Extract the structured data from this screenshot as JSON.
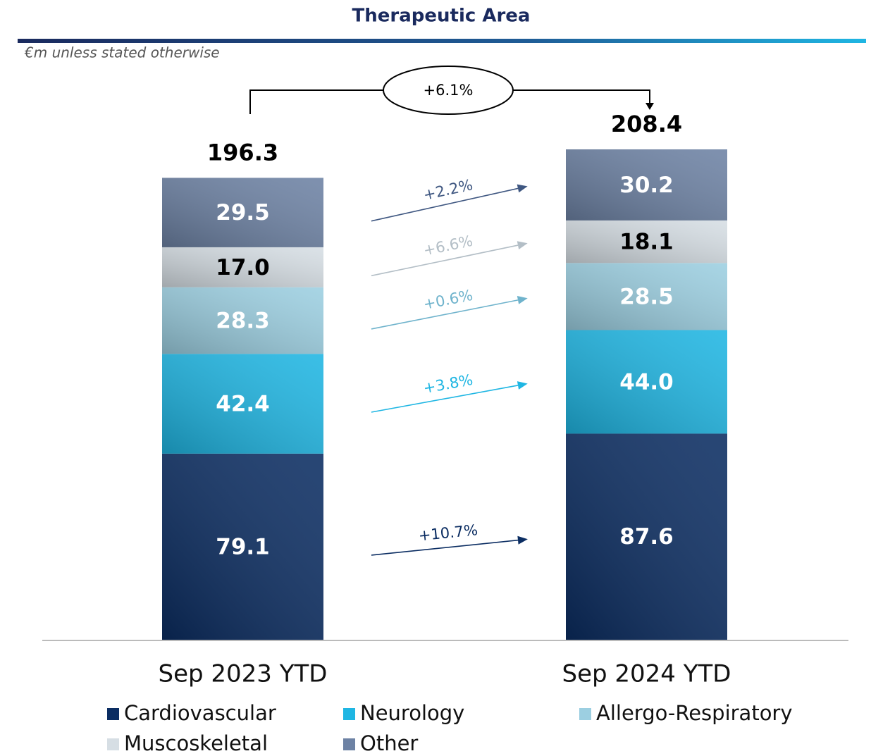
{
  "chart_data": {
    "type": "stacked_bar",
    "title": "Therapeutic Area",
    "subtitle": "€m unless stated otherwise",
    "categories": [
      "Sep 2023 YTD",
      "Sep 2024 YTD"
    ],
    "series": [
      {
        "name": "Cardiovascular",
        "color": "#0b2d62",
        "values": [
          79.1,
          87.6
        ],
        "value_labels": [
          "79.1",
          "87.6"
        ],
        "growth_label": "+10.7%"
      },
      {
        "name": "Neurology",
        "color": "#1fb6e3",
        "values": [
          42.4,
          44.0
        ],
        "value_labels": [
          "42.4",
          "44.0"
        ],
        "growth_label": "+3.8%"
      },
      {
        "name": "Allergo-Respiratory",
        "color": "#9ccfe1",
        "values": [
          28.3,
          28.5
        ],
        "value_labels": [
          "28.3",
          "28.5"
        ],
        "growth_label": "+0.6%"
      },
      {
        "name": "Muscoskeletal",
        "color": "#d6dee4",
        "values": [
          17.0,
          18.1
        ],
        "value_labels": [
          "17.0",
          "18.1"
        ],
        "growth_label": "+6.6%"
      },
      {
        "name": "Other",
        "color": "#6d82a4",
        "values": [
          29.5,
          30.2
        ],
        "value_labels": [
          "29.5",
          "30.2"
        ],
        "growth_label": "+2.2%"
      }
    ],
    "totals": [
      196.3,
      208.4
    ],
    "total_growth": "+6.1%"
  }
}
